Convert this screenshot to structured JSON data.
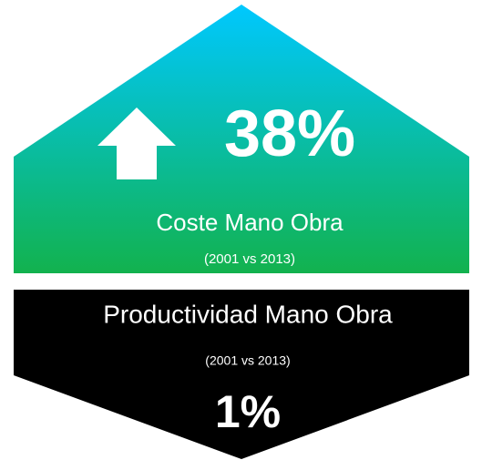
{
  "top": {
    "value": "38%",
    "label": "Coste Mano Obra",
    "period": "(2001 vs 2013)"
  },
  "bottom": {
    "label": "Productividad Mano Obra",
    "period": "(2001 vs 2013)",
    "value": "1%"
  }
}
